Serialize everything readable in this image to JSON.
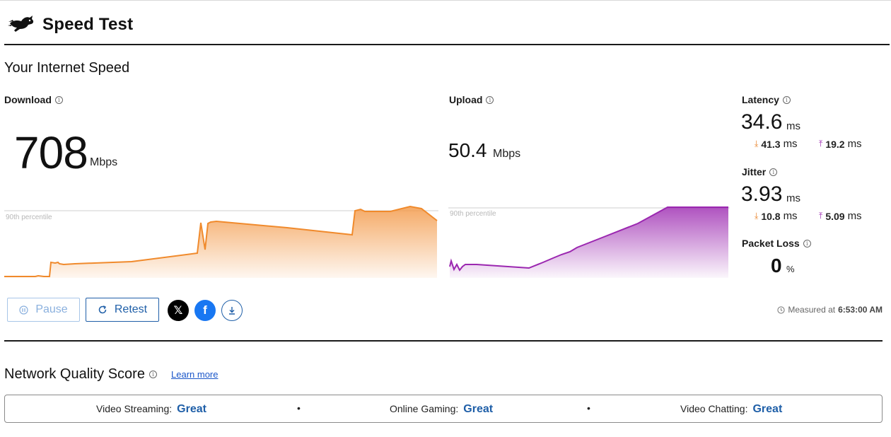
{
  "app": {
    "title": "Speed Test",
    "logo_icon": "running-rabbit-icon"
  },
  "speed_section": {
    "title": "Your Internet Speed"
  },
  "download": {
    "label": "Download",
    "value": "708",
    "unit": "Mbps",
    "percentile_label": "90th percentile",
    "color": "#f08a2c"
  },
  "upload": {
    "label": "Upload",
    "value": "50.4",
    "unit": "Mbps",
    "percentile_label": "90th percentile",
    "color": "#9b27b0"
  },
  "latency": {
    "label": "Latency",
    "value": "34.6",
    "unit": "ms",
    "download_value": "41.3",
    "download_unit": "ms",
    "upload_value": "19.2",
    "upload_unit": "ms"
  },
  "jitter": {
    "label": "Jitter",
    "value": "3.93",
    "unit": "ms",
    "download_value": "10.8",
    "download_unit": "ms",
    "upload_value": "5.09",
    "upload_unit": "ms"
  },
  "packet_loss": {
    "label": "Packet Loss",
    "value": "0",
    "unit": "%"
  },
  "actions": {
    "pause_label": "Pause",
    "retest_label": "Retest",
    "share_x_icon": "x-logo-icon",
    "share_facebook_icon": "facebook-icon",
    "download_icon": "download-icon"
  },
  "measured": {
    "prefix": "Measured at",
    "time": "6:53:00 AM"
  },
  "network_quality": {
    "title": "Network Quality Score",
    "learn_more": "Learn more",
    "items": [
      {
        "label": "Video Streaming:",
        "rating": "Great"
      },
      {
        "label": "Online Gaming:",
        "rating": "Great"
      },
      {
        "label": "Video Chatting:",
        "rating": "Great"
      }
    ]
  }
}
